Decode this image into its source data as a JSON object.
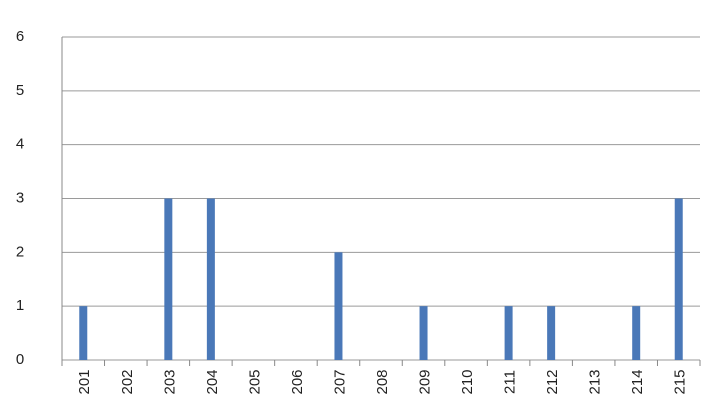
{
  "chart_data": {
    "type": "bar",
    "categories": [
      "201",
      "202",
      "203",
      "204",
      "205",
      "206",
      "207",
      "208",
      "209",
      "210",
      "211",
      "212",
      "213",
      "214",
      "215"
    ],
    "values": [
      1,
      0,
      3,
      3,
      0,
      0,
      2,
      0,
      1,
      0,
      1,
      1,
      0,
      1,
      3
    ],
    "color": "#4a78b8",
    "ylim": [
      0,
      6
    ],
    "yticks": [
      0,
      1,
      2,
      3,
      4,
      5,
      6
    ],
    "grid": true
  }
}
